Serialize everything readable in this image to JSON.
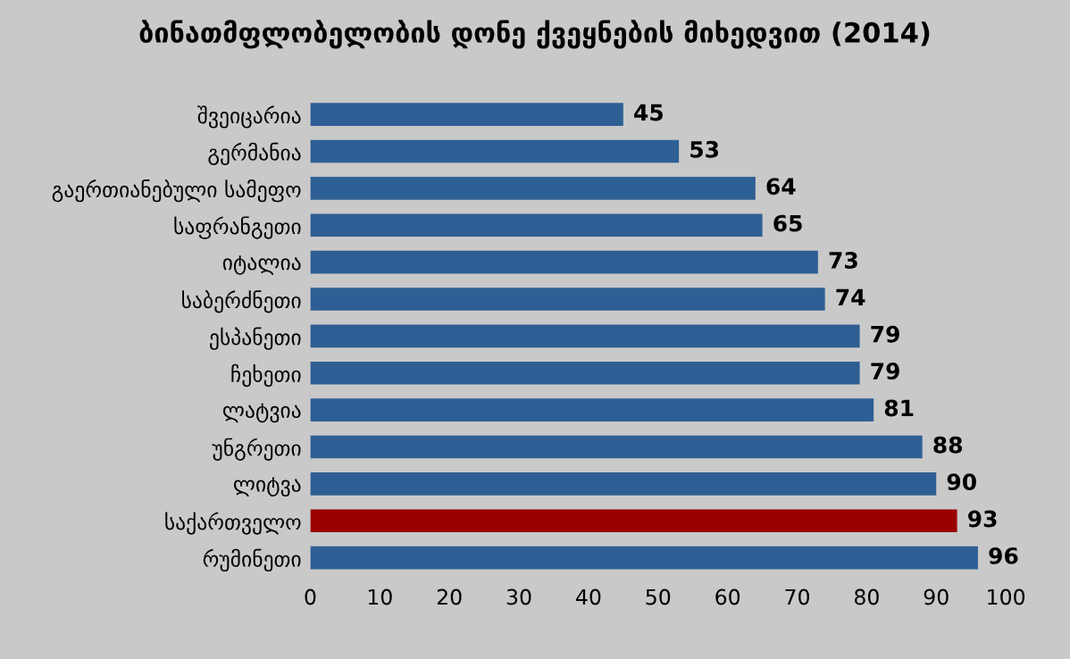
{
  "chart_data": {
    "type": "bar",
    "orientation": "horizontal",
    "title": "ბინათმფლობელობის დონე ქვეყნების მიხედვით (2014)",
    "categories": [
      "შვეიცარია",
      "გერმანია",
      "გაერთიანებული სამეფო",
      "საფრანგეთი",
      "იტალია",
      "საბერძნეთი",
      "ესპანეთი",
      "ჩეხეთი",
      "ლატვია",
      "უნგრეთი",
      "ლიტვა",
      "საქართველო",
      "რუმინეთი"
    ],
    "values": [
      45,
      53,
      64,
      65,
      73,
      74,
      79,
      79,
      81,
      88,
      90,
      93,
      96
    ],
    "colors": [
      "#2e5f94",
      "#2e5f94",
      "#2e5f94",
      "#2e5f94",
      "#2e5f94",
      "#2e5f94",
      "#2e5f94",
      "#2e5f94",
      "#2e5f94",
      "#2e5f94",
      "#2e5f94",
      "#9a0000",
      "#2e5f94"
    ],
    "xlim": [
      0,
      100
    ],
    "xticks": [
      0,
      10,
      20,
      30,
      40,
      50,
      60,
      70,
      80,
      90,
      100
    ],
    "data_labels": true,
    "grid": false,
    "legend": false
  }
}
